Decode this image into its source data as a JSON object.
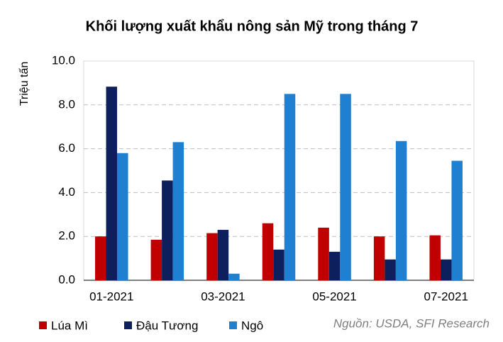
{
  "chart_data": {
    "type": "bar",
    "title": "Khối lượng xuất khẩu nông sản Mỹ trong tháng 7",
    "y_label": "Triệu tấn",
    "source": "Nguồn: USDA, SFI Research",
    "categories": [
      "01-2021",
      null,
      "03-2021",
      null,
      "05-2021",
      null,
      "07-2021"
    ],
    "series": [
      {
        "name": "Lúa Mì",
        "color": "#c00000",
        "values": [
          2.0,
          1.85,
          2.15,
          2.6,
          2.4,
          2.0,
          2.05
        ]
      },
      {
        "name": "Đậu Tương",
        "color": "#0d1f5c",
        "values": [
          8.83,
          4.55,
          2.3,
          1.4,
          1.3,
          0.95,
          0.95
        ]
      },
      {
        "name": "Ngô",
        "color": "#1f7fd0",
        "values": [
          5.8,
          6.3,
          0.3,
          8.5,
          8.5,
          6.35,
          5.45
        ]
      }
    ],
    "ylim": [
      0,
      10
    ],
    "yticks": [
      {
        "value": 0,
        "label": "0.0"
      },
      {
        "value": 2,
        "label": "2.0"
      },
      {
        "value": 4,
        "label": "4.0"
      },
      {
        "value": 6,
        "label": "6.0"
      },
      {
        "value": 8,
        "label": "8.0"
      },
      {
        "value": 10,
        "label": "10.0"
      }
    ],
    "grid": true,
    "legend": "bottom"
  }
}
